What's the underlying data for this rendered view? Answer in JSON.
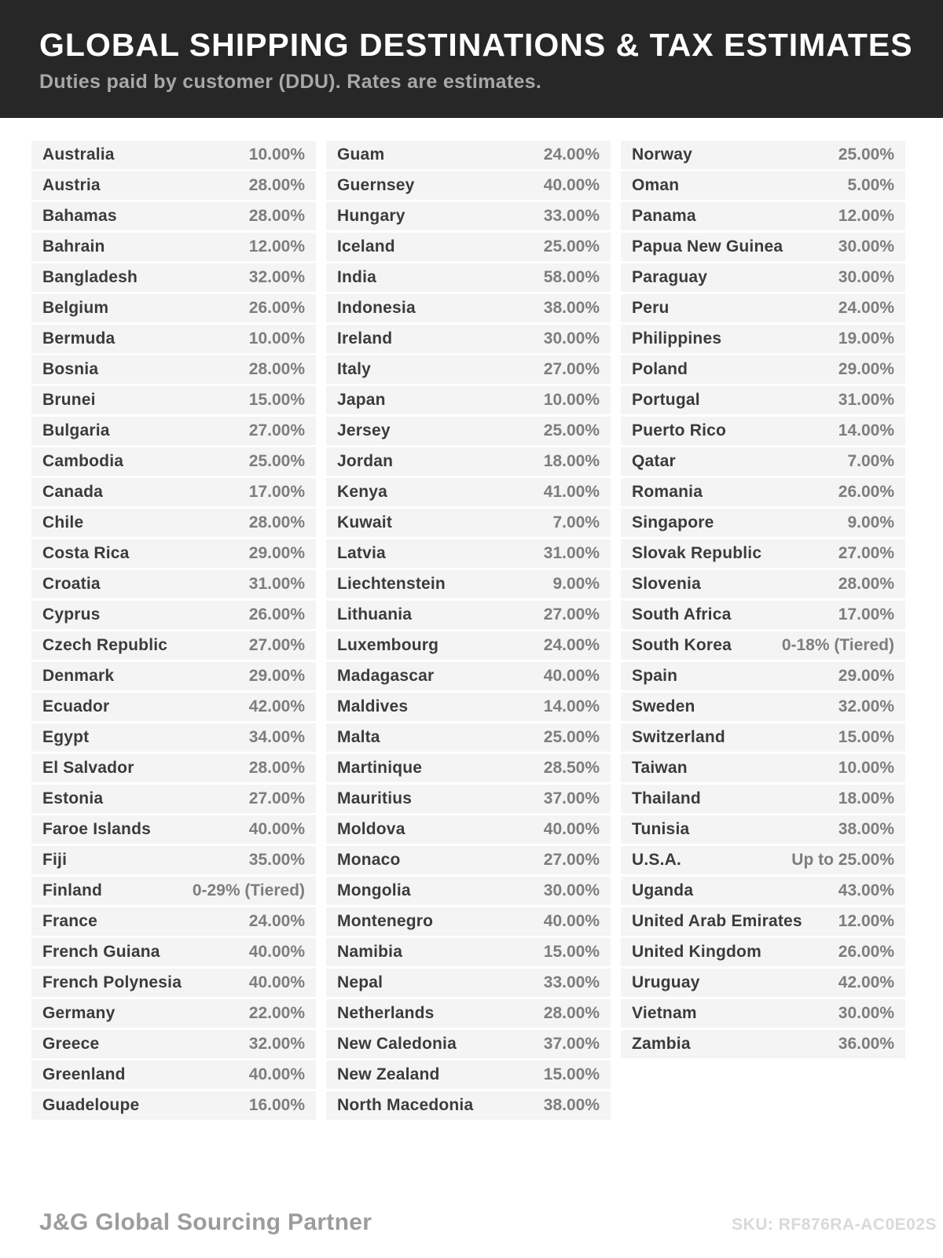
{
  "header": {
    "title": "GLOBAL SHIPPING DESTINATIONS & TAX ESTIMATES",
    "subtitle": "Duties paid by customer (DDU). Rates are estimates."
  },
  "colors": {
    "header_bg": "#272727",
    "row_bg": "#f4f4f5",
    "country_text": "#3b3b3b",
    "rate_text": "#7d7d7f",
    "subtitle_text": "#a8a8a8",
    "brand_text": "#9c9c9c",
    "sku_text": "#d9d9d9"
  },
  "columns": [
    [
      {
        "country": "Australia",
        "rate": "10.00%"
      },
      {
        "country": "Austria",
        "rate": "28.00%"
      },
      {
        "country": "Bahamas",
        "rate": "28.00%"
      },
      {
        "country": "Bahrain",
        "rate": "12.00%"
      },
      {
        "country": "Bangladesh",
        "rate": "32.00%"
      },
      {
        "country": "Belgium",
        "rate": "26.00%"
      },
      {
        "country": "Bermuda",
        "rate": "10.00%"
      },
      {
        "country": "Bosnia",
        "rate": "28.00%"
      },
      {
        "country": "Brunei",
        "rate": "15.00%"
      },
      {
        "country": "Bulgaria",
        "rate": "27.00%"
      },
      {
        "country": "Cambodia",
        "rate": "25.00%"
      },
      {
        "country": "Canada",
        "rate": "17.00%"
      },
      {
        "country": "Chile",
        "rate": "28.00%"
      },
      {
        "country": "Costa Rica",
        "rate": "29.00%"
      },
      {
        "country": "Croatia",
        "rate": "31.00%"
      },
      {
        "country": "Cyprus",
        "rate": "26.00%"
      },
      {
        "country": "Czech Republic",
        "rate": "27.00%"
      },
      {
        "country": "Denmark",
        "rate": "29.00%"
      },
      {
        "country": "Ecuador",
        "rate": "42.00%"
      },
      {
        "country": "Egypt",
        "rate": "34.00%"
      },
      {
        "country": "El Salvador",
        "rate": "28.00%"
      },
      {
        "country": "Estonia",
        "rate": "27.00%"
      },
      {
        "country": "Faroe Islands",
        "rate": "40.00%"
      },
      {
        "country": "Fiji",
        "rate": "35.00%"
      },
      {
        "country": "Finland",
        "rate": "0-29% (Tiered)"
      },
      {
        "country": "France",
        "rate": "24.00%"
      },
      {
        "country": "French Guiana",
        "rate": "40.00%"
      },
      {
        "country": "French Polynesia",
        "rate": "40.00%"
      },
      {
        "country": "Germany",
        "rate": "22.00%"
      },
      {
        "country": "Greece",
        "rate": "32.00%"
      },
      {
        "country": "Greenland",
        "rate": "40.00%"
      },
      {
        "country": "Guadeloupe",
        "rate": "16.00%"
      }
    ],
    [
      {
        "country": "Guam",
        "rate": "24.00%"
      },
      {
        "country": "Guernsey",
        "rate": "40.00%"
      },
      {
        "country": "Hungary",
        "rate": "33.00%"
      },
      {
        "country": "Iceland",
        "rate": "25.00%"
      },
      {
        "country": "India",
        "rate": "58.00%"
      },
      {
        "country": "Indonesia",
        "rate": "38.00%"
      },
      {
        "country": "Ireland",
        "rate": "30.00%"
      },
      {
        "country": "Italy",
        "rate": "27.00%"
      },
      {
        "country": "Japan",
        "rate": "10.00%"
      },
      {
        "country": "Jersey",
        "rate": "25.00%"
      },
      {
        "country": "Jordan",
        "rate": "18.00%"
      },
      {
        "country": "Kenya",
        "rate": "41.00%"
      },
      {
        "country": "Kuwait",
        "rate": "7.00%"
      },
      {
        "country": "Latvia",
        "rate": "31.00%"
      },
      {
        "country": "Liechtenstein",
        "rate": "9.00%"
      },
      {
        "country": "Lithuania",
        "rate": "27.00%"
      },
      {
        "country": "Luxembourg",
        "rate": "24.00%"
      },
      {
        "country": "Madagascar",
        "rate": "40.00%"
      },
      {
        "country": "Maldives",
        "rate": "14.00%"
      },
      {
        "country": "Malta",
        "rate": "25.00%"
      },
      {
        "country": "Martinique",
        "rate": "28.50%"
      },
      {
        "country": "Mauritius",
        "rate": "37.00%"
      },
      {
        "country": "Moldova",
        "rate": "40.00%"
      },
      {
        "country": "Monaco",
        "rate": "27.00%"
      },
      {
        "country": "Mongolia",
        "rate": "30.00%"
      },
      {
        "country": "Montenegro",
        "rate": "40.00%"
      },
      {
        "country": "Namibia",
        "rate": "15.00%"
      },
      {
        "country": "Nepal",
        "rate": "33.00%"
      },
      {
        "country": "Netherlands",
        "rate": "28.00%"
      },
      {
        "country": "New Caledonia",
        "rate": "37.00%"
      },
      {
        "country": "New Zealand",
        "rate": "15.00%"
      },
      {
        "country": "North Macedonia",
        "rate": "38.00%"
      }
    ],
    [
      {
        "country": "Norway",
        "rate": "25.00%"
      },
      {
        "country": "Oman",
        "rate": "5.00%"
      },
      {
        "country": "Panama",
        "rate": "12.00%"
      },
      {
        "country": "Papua New Guinea",
        "rate": "30.00%"
      },
      {
        "country": "Paraguay",
        "rate": "30.00%"
      },
      {
        "country": "Peru",
        "rate": "24.00%"
      },
      {
        "country": "Philippines",
        "rate": "19.00%"
      },
      {
        "country": "Poland",
        "rate": "29.00%"
      },
      {
        "country": "Portugal",
        "rate": "31.00%"
      },
      {
        "country": "Puerto Rico",
        "rate": "14.00%"
      },
      {
        "country": "Qatar",
        "rate": "7.00%"
      },
      {
        "country": "Romania",
        "rate": "26.00%"
      },
      {
        "country": "Singapore",
        "rate": "9.00%"
      },
      {
        "country": "Slovak Republic",
        "rate": "27.00%"
      },
      {
        "country": "Slovenia",
        "rate": "28.00%"
      },
      {
        "country": "South Africa",
        "rate": "17.00%"
      },
      {
        "country": "South Korea",
        "rate": "0-18% (Tiered)"
      },
      {
        "country": "Spain",
        "rate": "29.00%"
      },
      {
        "country": "Sweden",
        "rate": "32.00%"
      },
      {
        "country": "Switzerland",
        "rate": "15.00%"
      },
      {
        "country": "Taiwan",
        "rate": "10.00%"
      },
      {
        "country": "Thailand",
        "rate": "18.00%"
      },
      {
        "country": "Tunisia",
        "rate": "38.00%"
      },
      {
        "country": "U.S.A.",
        "rate": "Up to 25.00%"
      },
      {
        "country": "Uganda",
        "rate": "43.00%"
      },
      {
        "country": "United Arab Emirates",
        "rate": "12.00%"
      },
      {
        "country": "United Kingdom",
        "rate": "26.00%"
      },
      {
        "country": "Uruguay",
        "rate": "42.00%"
      },
      {
        "country": "Vietnam",
        "rate": "30.00%"
      },
      {
        "country": "Zambia",
        "rate": "36.00%"
      }
    ]
  ],
  "footer": {
    "brand": "J&G Global Sourcing Partner",
    "sku": "SKU: RF876RA-AC0E02S"
  }
}
